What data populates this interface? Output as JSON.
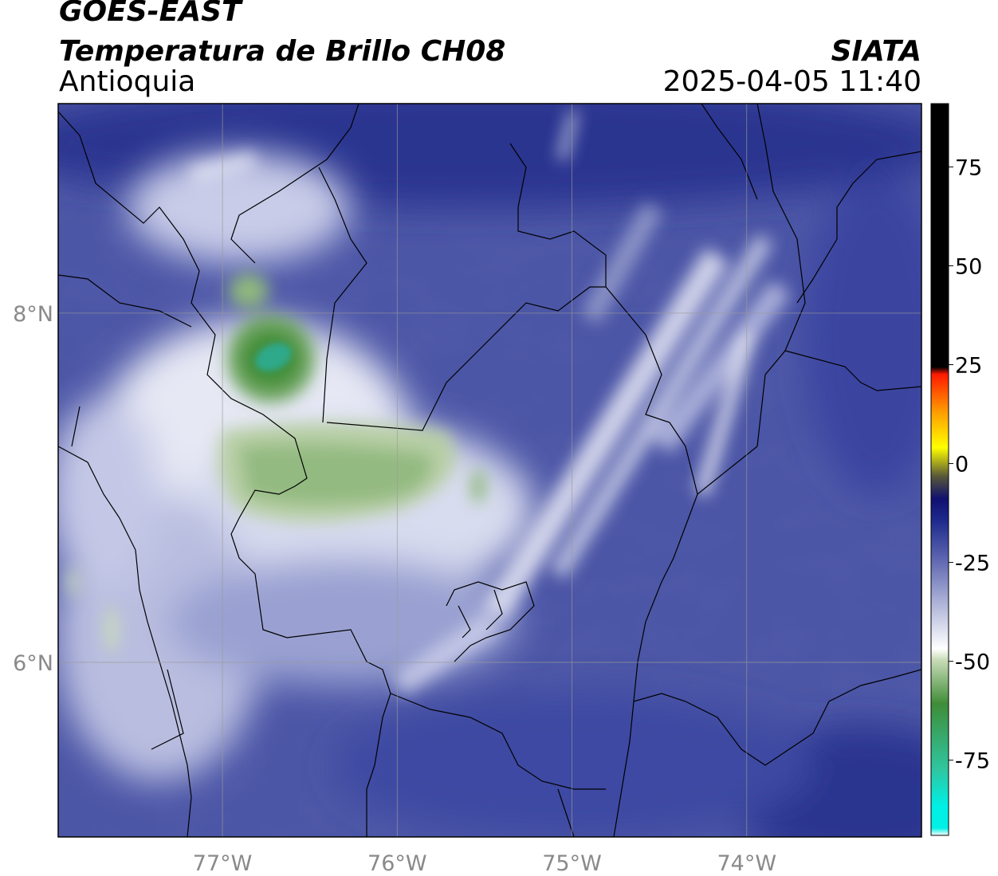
{
  "header": {
    "satellite": "GOES-EAST",
    "product": "Temperatura de Brillo CH08",
    "region": "Antioquia",
    "organization": "SIATA",
    "datetime": "2025-04-05 11:40"
  },
  "map": {
    "lon_range": [
      -77.94,
      -73.0
    ],
    "lat_range": [
      5.0,
      9.2
    ],
    "x_ticks": [
      {
        "value": -77,
        "label": "77°W"
      },
      {
        "value": -76,
        "label": "76°W"
      },
      {
        "value": -75,
        "label": "75°W"
      },
      {
        "value": -74,
        "label": "74°W"
      }
    ],
    "y_ticks": [
      {
        "value": 8,
        "label": "8°N"
      },
      {
        "value": 6,
        "label": "6°N"
      }
    ],
    "gridlines": true
  },
  "colorbar": {
    "min": -94,
    "max": 91,
    "ticks": [
      {
        "value": 75,
        "label": "75"
      },
      {
        "value": 50,
        "label": "50"
      },
      {
        "value": 25,
        "label": "25"
      },
      {
        "value": 0,
        "label": "0"
      },
      {
        "value": -25,
        "label": "-25"
      },
      {
        "value": -50,
        "label": "-50"
      },
      {
        "value": -75,
        "label": "-75"
      }
    ],
    "colors": {
      "above_10": "#000000",
      "red": "#ff1a00",
      "orange": "#ff9900",
      "yellow": "#ffff00",
      "dark_navy": "#101070",
      "navy": "#1e2a8c",
      "periwinkle": "#5a63ae",
      "lavender": "#aab0d6",
      "white": "#ffffff",
      "pale_green": "#c9dcb8",
      "green": "#3f8d38",
      "teal": "#2fc6a0",
      "cyan": "#00f0e6"
    }
  }
}
